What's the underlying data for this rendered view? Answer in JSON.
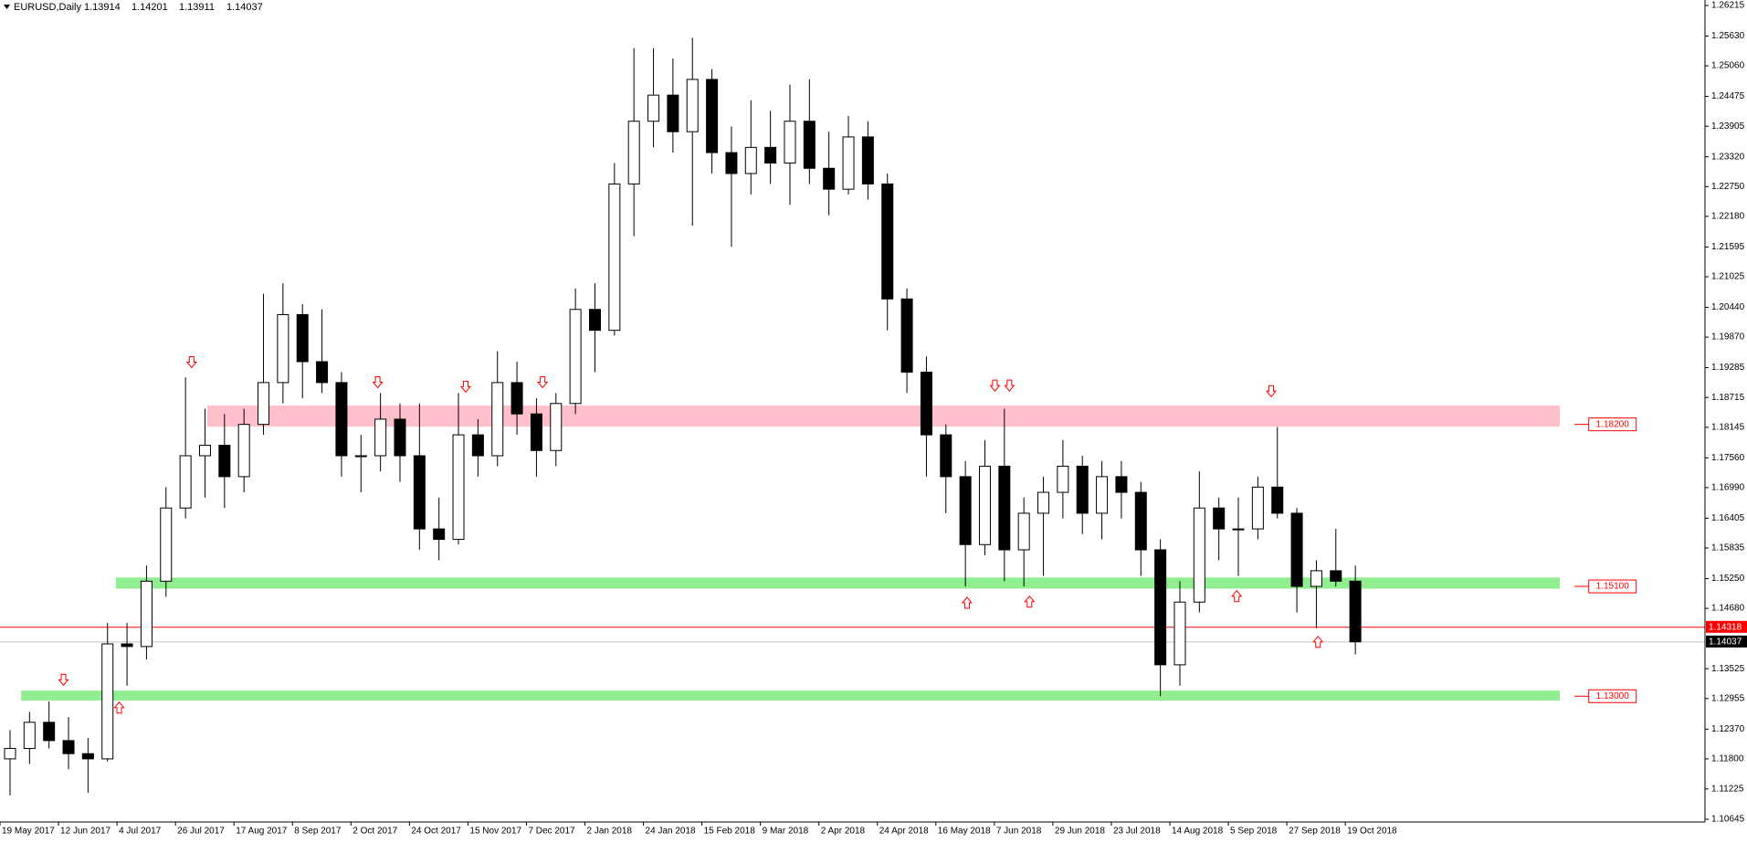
{
  "chart_data": {
    "type": "candlestick",
    "title": "EURUSD,Daily",
    "header_ohlc": [
      1.13914,
      1.14201,
      1.13911,
      1.14037
    ],
    "categories": [
      "19 May 2017",
      null,
      null,
      "12 Jun 2017",
      null,
      null,
      "4 Jul 2017",
      null,
      null,
      "26 Jul 2017",
      null,
      null,
      "17 Aug 2017",
      null,
      null,
      "8 Sep 2017",
      null,
      null,
      "2 Oct 2017",
      null,
      null,
      "24 Oct 2017",
      null,
      null,
      "15 Nov 2017",
      null,
      null,
      "7 Dec 2017",
      null,
      null,
      "2 Jan 2018",
      null,
      null,
      "24 Jan 2018",
      null,
      null,
      "15 Feb 2018",
      null,
      null,
      "9 Mar 2018",
      null,
      null,
      "2 Apr 2018",
      null,
      null,
      "24 Apr 2018",
      null,
      null,
      "16 May 2018",
      null,
      null,
      "7 Jun 2018",
      null,
      null,
      "29 Jun 2018",
      null,
      null,
      "23 Jul 2018",
      null,
      null,
      "14 Aug 2018",
      null,
      null,
      "5 Sep 2018",
      null,
      null,
      "27 Sep 2018",
      null,
      null,
      "19 Oct 2018"
    ],
    "candles": [
      [
        1.118,
        1.1235,
        1.111,
        1.12
      ],
      [
        1.12,
        1.127,
        1.117,
        1.125
      ],
      [
        1.125,
        1.129,
        1.12,
        1.1215
      ],
      [
        1.1215,
        1.126,
        1.116,
        1.119
      ],
      [
        1.119,
        1.122,
        1.1115,
        1.118
      ],
      [
        1.118,
        1.144,
        1.1175,
        1.14
      ],
      [
        1.14,
        1.144,
        1.132,
        1.1395
      ],
      [
        1.1395,
        1.155,
        1.137,
        1.152
      ],
      [
        1.152,
        1.17,
        1.149,
        1.166
      ],
      [
        1.166,
        1.191,
        1.164,
        1.176
      ],
      [
        1.176,
        1.185,
        1.168,
        1.178
      ],
      [
        1.178,
        1.184,
        1.166,
        1.172
      ],
      [
        1.172,
        1.185,
        1.169,
        1.182
      ],
      [
        1.182,
        1.207,
        1.18,
        1.19
      ],
      [
        1.19,
        1.209,
        1.186,
        1.203
      ],
      [
        1.203,
        1.205,
        1.187,
        1.194
      ],
      [
        1.194,
        1.204,
        1.188,
        1.19
      ],
      [
        1.19,
        1.192,
        1.172,
        1.176
      ],
      [
        1.176,
        1.18,
        1.169,
        1.176
      ],
      [
        1.176,
        1.188,
        1.173,
        1.183
      ],
      [
        1.183,
        1.186,
        1.171,
        1.176
      ],
      [
        1.176,
        1.186,
        1.158,
        1.162
      ],
      [
        1.162,
        1.168,
        1.156,
        1.16
      ],
      [
        1.16,
        1.188,
        1.159,
        1.18
      ],
      [
        1.18,
        1.183,
        1.172,
        1.176
      ],
      [
        1.176,
        1.196,
        1.174,
        1.19
      ],
      [
        1.19,
        1.194,
        1.18,
        1.184
      ],
      [
        1.184,
        1.187,
        1.172,
        1.177
      ],
      [
        1.177,
        1.188,
        1.174,
        1.186
      ],
      [
        1.186,
        1.208,
        1.184,
        1.204
      ],
      [
        1.204,
        1.209,
        1.192,
        1.2
      ],
      [
        1.2,
        1.232,
        1.199,
        1.228
      ],
      [
        1.228,
        1.254,
        1.218,
        1.24
      ],
      [
        1.24,
        1.254,
        1.235,
        1.245
      ],
      [
        1.245,
        1.252,
        1.234,
        1.238
      ],
      [
        1.238,
        1.256,
        1.22,
        1.248
      ],
      [
        1.248,
        1.25,
        1.23,
        1.234
      ],
      [
        1.234,
        1.239,
        1.216,
        1.23
      ],
      [
        1.23,
        1.244,
        1.226,
        1.235
      ],
      [
        1.235,
        1.242,
        1.228,
        1.232
      ],
      [
        1.232,
        1.247,
        1.224,
        1.24
      ],
      [
        1.24,
        1.248,
        1.228,
        1.231
      ],
      [
        1.231,
        1.238,
        1.222,
        1.227
      ],
      [
        1.227,
        1.241,
        1.226,
        1.237
      ],
      [
        1.237,
        1.24,
        1.225,
        1.228
      ],
      [
        1.228,
        1.23,
        1.2,
        1.206
      ],
      [
        1.206,
        1.208,
        1.188,
        1.192
      ],
      [
        1.192,
        1.195,
        1.172,
        1.18
      ],
      [
        1.18,
        1.182,
        1.165,
        1.172
      ],
      [
        1.172,
        1.175,
        1.151,
        1.159
      ],
      [
        1.159,
        1.179,
        1.157,
        1.174
      ],
      [
        1.174,
        1.185,
        1.152,
        1.158
      ],
      [
        1.158,
        1.168,
        1.151,
        1.165
      ],
      [
        1.165,
        1.172,
        1.153,
        1.169
      ],
      [
        1.169,
        1.179,
        1.164,
        1.174
      ],
      [
        1.174,
        1.176,
        1.161,
        1.165
      ],
      [
        1.165,
        1.175,
        1.16,
        1.172
      ],
      [
        1.172,
        1.175,
        1.164,
        1.169
      ],
      [
        1.169,
        1.171,
        1.153,
        1.158
      ],
      [
        1.158,
        1.16,
        1.13,
        1.136
      ],
      [
        1.136,
        1.152,
        1.132,
        1.148
      ],
      [
        1.148,
        1.173,
        1.146,
        1.166
      ],
      [
        1.166,
        1.168,
        1.156,
        1.162
      ],
      [
        1.162,
        1.168,
        1.153,
        1.162
      ],
      [
        1.162,
        1.172,
        1.16,
        1.17
      ],
      [
        1.17,
        1.1815,
        1.164,
        1.165
      ],
      [
        1.165,
        1.166,
        1.146,
        1.151
      ],
      [
        1.151,
        1.156,
        1.143,
        1.154
      ],
      [
        1.154,
        1.162,
        1.151,
        1.152
      ],
      [
        1.152,
        1.155,
        1.138,
        1.1404
      ]
    ],
    "up_color": "#ffffff",
    "down_color": "#000000",
    "outline_color": "#000000",
    "ylim": [
      1.10645,
      1.26215
    ],
    "yticks": [
      1.26215,
      {
        "value": 1.2563,
        "label": "1.25630"
      },
      {
        "value": 1.2506,
        "label": "1.25060"
      },
      1.24475,
      1.23905,
      {
        "value": 1.2332,
        "label": "1.23320"
      },
      {
        "value": 1.2275,
        "label": "1.22750"
      },
      {
        "value": 1.2218,
        "label": "1.22180"
      },
      1.21595,
      1.21025,
      {
        "value": 1.2044,
        "label": "1.20440"
      },
      {
        "value": 1.1987,
        "label": "1.19870"
      },
      1.19285,
      1.18715,
      1.18145,
      {
        "value": 1.1756,
        "label": "1.17560"
      },
      {
        "value": 1.1699,
        "label": "1.16990"
      },
      1.16405,
      1.15835,
      {
        "value": 1.1525,
        "label": "1.15250"
      },
      {
        "value": 1.1468,
        "label": "1.14680"
      },
      1.13525,
      1.12955,
      {
        "value": 1.1237,
        "label": "1.12370"
      },
      {
        "value": 1.118,
        "label": "1.11800"
      },
      1.11225,
      1.10645
    ],
    "zones": [
      {
        "level": {
          "value": 1.182,
          "label": "1.18200"
        },
        "color": "#ffc0cb"
      },
      {
        "level": {
          "value": 1.151,
          "label": "1.15100"
        },
        "color": "#90ee90"
      },
      {
        "level": {
          "value": 1.13,
          "label": "1.13000"
        },
        "color": "#90ee90"
      }
    ],
    "ask_line": {
      "value": 1.14318,
      "color": "#ff0000"
    },
    "bid_line": {
      "value": 1.14037,
      "color": "#c0c0c0"
    }
  }
}
